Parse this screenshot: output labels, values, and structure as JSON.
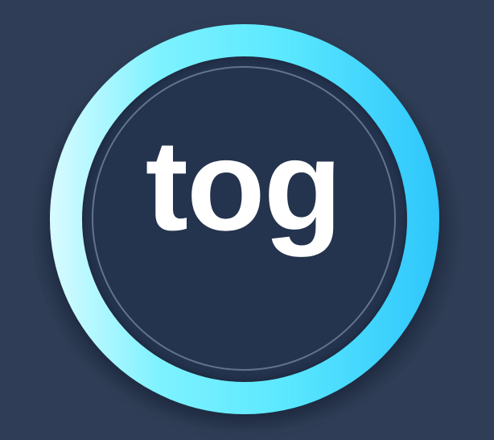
{
  "toggle": {
    "label": "tog"
  }
}
